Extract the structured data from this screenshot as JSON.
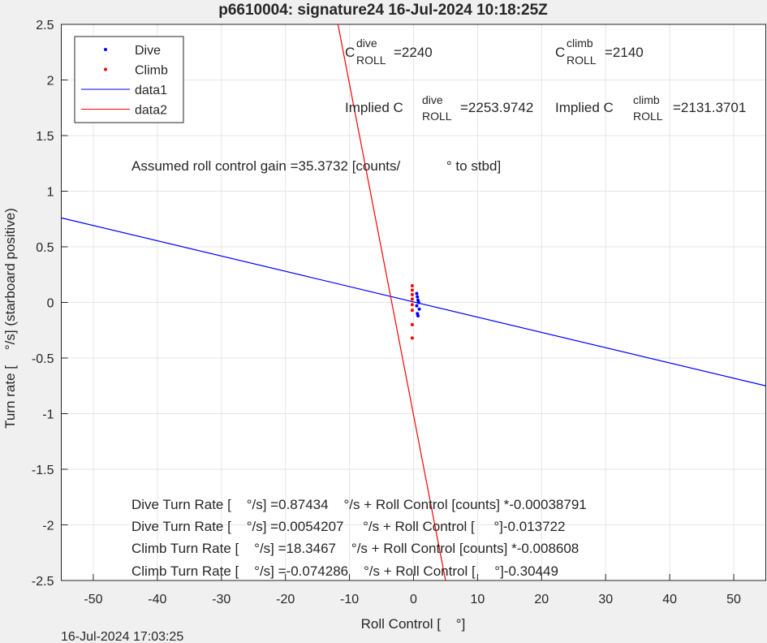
{
  "chart_data": {
    "type": "scatter",
    "title": "p6610004: signature24 16-Jul-2024 10:18:25Z",
    "xlabel": "Roll Control [    °]",
    "ylabel": "Turn rate [    °/s] (starboard positive)",
    "timestamp": "16-Jul-2024 17:03:25",
    "xlim": [
      -55,
      55
    ],
    "ylim": [
      -2.5,
      2.5
    ],
    "xticks": [
      -50,
      -40,
      -30,
      -20,
      -10,
      0,
      10,
      20,
      30,
      40,
      50
    ],
    "yticks": [
      -2.5,
      -2,
      -1.5,
      -1,
      -0.5,
      0,
      0.5,
      1,
      1.5,
      2,
      2.5
    ],
    "grid": true,
    "legend": "northwest",
    "series": [
      {
        "name": "Dive",
        "kind": "points",
        "color": "#0000ff",
        "x": [
          0.5,
          0.6,
          0.7,
          0.8,
          0.5,
          0.9,
          0.6,
          0.7
        ],
        "values": [
          0.08,
          0.05,
          0.02,
          0,
          -0.03,
          -0.06,
          -0.1,
          -0.12
        ]
      },
      {
        "name": "Climb",
        "kind": "points",
        "color": "#ff0000",
        "x": [
          -0.2,
          -0.2,
          -0.2,
          -0.2,
          -0.2,
          -0.2,
          -0.2,
          -0.2
        ],
        "values": [
          0.15,
          0.11,
          0.07,
          0.03,
          -0.02,
          -0.07,
          -0.2,
          -0.32
        ]
      },
      {
        "name": "data1",
        "kind": "line",
        "color": "#0000ff",
        "x": [
          -55,
          55
        ],
        "values": [
          0.76,
          -0.75
        ]
      },
      {
        "name": "data2",
        "kind": "line",
        "color": "#ff0000",
        "x": [
          -11.8,
          5.0
        ],
        "values": [
          2.5,
          -2.5
        ]
      }
    ],
    "annotations": {
      "c_dive": {
        "base": "C",
        "sup": "dive",
        "sub": "ROLL",
        "value": "=2240"
      },
      "c_climb": {
        "base": "C",
        "sup": "climb",
        "sub": "ROLL",
        "value": "=2140"
      },
      "implied_dive": {
        "base": "Implied C",
        "sup": "dive",
        "sub": "ROLL",
        "value": "=2253.9742"
      },
      "implied_climb": {
        "base": "Implied C",
        "sup": "climb",
        "sub": "ROLL",
        "value": "=2131.3701"
      },
      "gain": "Assumed roll control gain =35.3732 [counts/            ° to stbd]",
      "equations": [
        "Dive Turn Rate [    °/s] =0.87434    °/s + Roll Control [counts] *-0.00038791",
        "Dive Turn Rate [    °/s] =0.0054207     °/s + Roll Control [     °]-0.013722",
        "Climb Turn Rate [    °/s] =18.3467    °/s + Roll Control [counts] *-0.008608",
        "Climb Turn Rate [    °/s] =-0.074286    °/s + Roll Control [     °]-0.30449"
      ]
    }
  }
}
